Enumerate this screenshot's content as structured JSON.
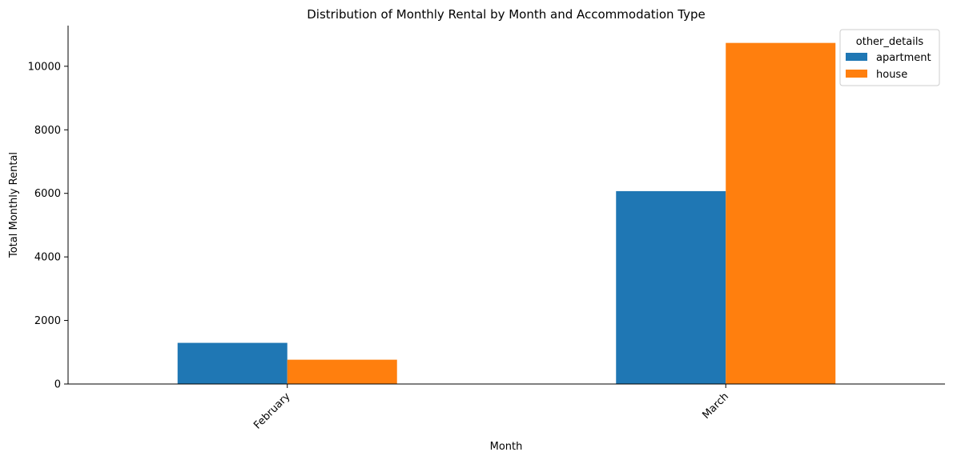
{
  "chart_data": {
    "type": "bar",
    "title": "Distribution of Monthly Rental by Month and Accommodation Type",
    "xlabel": "Month",
    "ylabel": "Total Monthly Rental",
    "categories": [
      "February",
      "March"
    ],
    "series": [
      {
        "name": "apartment",
        "color": "#1f77b4",
        "values": [
          1295,
          6070
        ]
      },
      {
        "name": "house",
        "color": "#ff7f0e",
        "values": [
          765,
          10735
        ]
      }
    ],
    "ylim": [
      0,
      11280
    ],
    "yticks": [
      0,
      2000,
      4000,
      6000,
      8000,
      10000
    ],
    "yticks_labels": [
      "0",
      "2000",
      "4000",
      "6000",
      "8000",
      "10000"
    ],
    "grid": false,
    "legend": {
      "title": "other_details",
      "placement": "top-right"
    }
  }
}
